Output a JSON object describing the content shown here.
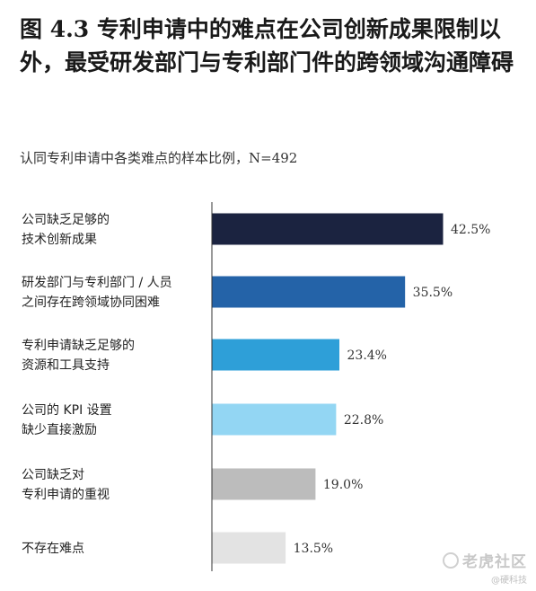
{
  "title": "图 4.3 专利申请中的难点在公司创新成果限制以外，最受研发部门与专利部门件的跨领域沟通障碍",
  "subtitle": "认同专利申请中各类难点的样本比例，N=492",
  "chart_data": {
    "type": "bar",
    "orientation": "horizontal",
    "categories": [
      [
        "公司缺乏足够的",
        "技术创新成果"
      ],
      [
        "研发部门与专利部门 / 人员",
        "之间存在跨领域协同困难"
      ],
      [
        "专利申请缺乏足够的",
        "资源和工具支持"
      ],
      [
        "公司的 KPI 设置",
        "缺少直接激励"
      ],
      [
        "公司缺乏对",
        "专利申请的重视"
      ],
      [
        "不存在难点"
      ]
    ],
    "values": [
      42.5,
      35.5,
      23.4,
      22.8,
      19.0,
      13.5
    ],
    "value_labels": [
      "42.5%",
      "35.5%",
      "23.4%",
      "22.8%",
      "19.0%",
      "13.5%"
    ],
    "colors": [
      "#1b2340",
      "#2463a8",
      "#2e9fd8",
      "#93d6f3",
      "#bcbcbc",
      "#e3e3e3"
    ],
    "xlim": [
      0,
      50
    ],
    "grid": false,
    "legend": "none"
  },
  "watermark": {
    "main": "老虎社区",
    "sub": "@硬科技"
  }
}
